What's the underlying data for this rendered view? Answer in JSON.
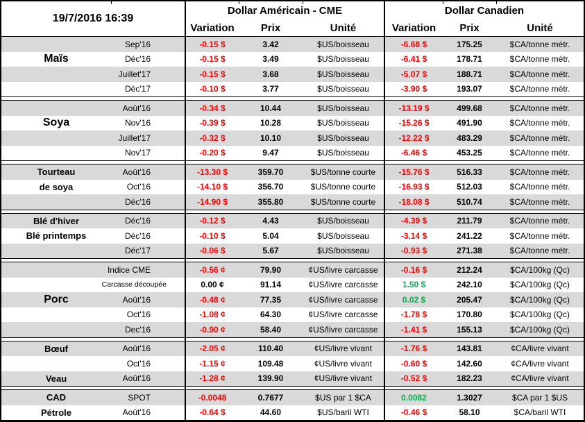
{
  "titlebar": {
    "timestamp": "19/7/2016 16:39"
  },
  "header": {
    "us_title": "Dollar Américain - CME",
    "ca_title": "Dollar Canadien",
    "variation": "Variation",
    "prix": "Prix",
    "unite": "Unité"
  },
  "colors": {
    "negative": "#FF0000",
    "positive": "#00B050",
    "neutral": "#000000",
    "row_shade": "#D9D9D9"
  },
  "sections": [
    {
      "name": "Maïs",
      "rows": [
        {
          "label": "",
          "month": "Sep'16",
          "us": {
            "variation": "-0.15 $",
            "trend": "negative",
            "prix": "3.42",
            "unite": "$US/boisseau"
          },
          "ca": {
            "variation": "-6.68 $",
            "trend": "negative",
            "prix": "175.25",
            "unite": "$CA/tonne métr."
          }
        },
        {
          "label": "Maïs",
          "label_large": true,
          "month": "Déc'16",
          "us": {
            "variation": "-0.15 $",
            "trend": "negative",
            "prix": "3.49",
            "unite": "$US/boisseau"
          },
          "ca": {
            "variation": "-6.41 $",
            "trend": "negative",
            "prix": "178.71",
            "unite": "$CA/tonne métr."
          }
        },
        {
          "label": "",
          "month": "Juillet'17",
          "us": {
            "variation": "-0.15 $",
            "trend": "negative",
            "prix": "3.68",
            "unite": "$US/boisseau"
          },
          "ca": {
            "variation": "-5.07 $",
            "trend": "negative",
            "prix": "188.71",
            "unite": "$CA/tonne métr."
          }
        },
        {
          "label": "",
          "month": "Déc'17",
          "us": {
            "variation": "-0.10 $",
            "trend": "negative",
            "prix": "3.77",
            "unite": "$US/boisseau"
          },
          "ca": {
            "variation": "-3.90 $",
            "trend": "negative",
            "prix": "193.07",
            "unite": "$CA/tonne métr."
          }
        }
      ]
    },
    {
      "name": "Soya",
      "rows": [
        {
          "label": "",
          "month": "Août'16",
          "us": {
            "variation": "-0.34 $",
            "trend": "negative",
            "prix": "10.44",
            "unite": "$US/boisseau"
          },
          "ca": {
            "variation": "-13.19 $",
            "trend": "negative",
            "prix": "499.68",
            "unite": "$CA/tonne métr."
          }
        },
        {
          "label": "Soya",
          "label_large": true,
          "month": "Nov'16",
          "us": {
            "variation": "-0.39 $",
            "trend": "negative",
            "prix": "10.28",
            "unite": "$US/boisseau"
          },
          "ca": {
            "variation": "-15.26 $",
            "trend": "negative",
            "prix": "491.90",
            "unite": "$CA/tonne métr."
          }
        },
        {
          "label": "",
          "month": "Juillet'17",
          "us": {
            "variation": "-0.32 $",
            "trend": "negative",
            "prix": "10.10",
            "unite": "$US/boisseau"
          },
          "ca": {
            "variation": "-12.22 $",
            "trend": "negative",
            "prix": "483.29",
            "unite": "$CA/tonne métr."
          }
        },
        {
          "label": "",
          "month": "Nov'17",
          "us": {
            "variation": "-0.20 $",
            "trend": "negative",
            "prix": "9.47",
            "unite": "$US/boisseau"
          },
          "ca": {
            "variation": "-6.46 $",
            "trend": "negative",
            "prix": "453.25",
            "unite": "$CA/tonne métr."
          }
        }
      ]
    },
    {
      "name": "Tourteau de soya",
      "rows": [
        {
          "label": "Tourteau",
          "month": "Août'16",
          "us": {
            "variation": "-13.30 $",
            "trend": "negative",
            "prix": "359.70",
            "unite": "$US/tonne courte"
          },
          "ca": {
            "variation": "-15.76 $",
            "trend": "negative",
            "prix": "516.33",
            "unite": "$CA/tonne métr."
          }
        },
        {
          "label": "de soya",
          "month": "Oct'16",
          "us": {
            "variation": "-14.10 $",
            "trend": "negative",
            "prix": "356.70",
            "unite": "$US/tonne courte"
          },
          "ca": {
            "variation": "-16.93 $",
            "trend": "negative",
            "prix": "512.03",
            "unite": "$CA/tonne métr."
          }
        },
        {
          "label": "",
          "month": "Déc'16",
          "us": {
            "variation": "-14.90 $",
            "trend": "negative",
            "prix": "355.80",
            "unite": "$US/tonne courte"
          },
          "ca": {
            "variation": "-18.08 $",
            "trend": "negative",
            "prix": "510.74",
            "unite": "$CA/tonne métr."
          }
        }
      ]
    },
    {
      "name": "Blé",
      "rows": [
        {
          "label": "Blé d'hiver",
          "month": "Déc'16",
          "us": {
            "variation": "-0.12 $",
            "trend": "negative",
            "prix": "4.43",
            "unite": "$US/boisseau"
          },
          "ca": {
            "variation": "-4.39 $",
            "trend": "negative",
            "prix": "211.79",
            "unite": "$CA/tonne métr."
          }
        },
        {
          "label": "Blé printemps",
          "month": "Déc'16",
          "us": {
            "variation": "-0.10 $",
            "trend": "negative",
            "prix": "5.04",
            "unite": "$US/boisseau"
          },
          "ca": {
            "variation": "-3.14 $",
            "trend": "negative",
            "prix": "241.22",
            "unite": "$CA/tonne métr."
          }
        },
        {
          "label": "",
          "month": "Déc'17",
          "us": {
            "variation": "-0.06 $",
            "trend": "negative",
            "prix": "5.67",
            "unite": "$US/boisseau"
          },
          "ca": {
            "variation": "-0.93 $",
            "trend": "negative",
            "prix": "271.38",
            "unite": "$CA/tonne métr."
          }
        }
      ]
    },
    {
      "name": "Porc",
      "rows": [
        {
          "label": "",
          "month": "Indice CME",
          "us": {
            "variation": "-0.56 ¢",
            "trend": "negative",
            "prix": "79.90",
            "unite": "¢US/livre carcasse"
          },
          "ca": {
            "variation": "-0.16 $",
            "trend": "negative",
            "prix": "212.24",
            "unite": "$CA/100kg (Qc)"
          }
        },
        {
          "label": "",
          "month": "Carcasse découpée",
          "month_small": true,
          "us": {
            "variation": "0.00 ¢",
            "trend": "neutral",
            "prix": "91.14",
            "unite": "¢US/livre carcasse"
          },
          "ca": {
            "variation": "1.50 $",
            "trend": "positive",
            "prix": "242.10",
            "unite": "$CA/100kg (Qc)"
          }
        },
        {
          "label": "Porc",
          "label_large": true,
          "month": "Août'16",
          "us": {
            "variation": "-0.48 ¢",
            "trend": "negative",
            "prix": "77.35",
            "unite": "¢US/livre carcasse"
          },
          "ca": {
            "variation": "0.02 $",
            "trend": "positive",
            "prix": "205.47",
            "unite": "$CA/100kg (Qc)"
          }
        },
        {
          "label": "",
          "month": "Oct'16",
          "us": {
            "variation": "-1.08 ¢",
            "trend": "negative",
            "prix": "64.30",
            "unite": "¢US/livre carcasse"
          },
          "ca": {
            "variation": "-1.78 $",
            "trend": "negative",
            "prix": "170.80",
            "unite": "$CA/100kg (Qc)"
          }
        },
        {
          "label": "",
          "month": "Dec'16",
          "us": {
            "variation": "-0.90 ¢",
            "trend": "negative",
            "prix": "58.40",
            "unite": "¢US/livre carcasse"
          },
          "ca": {
            "variation": "-1.41 $",
            "trend": "negative",
            "prix": "155.13",
            "unite": "$CA/100kg (Qc)"
          }
        }
      ]
    },
    {
      "name": "Bœuf / Veau",
      "rows": [
        {
          "label": "Bœuf",
          "month": "Août'16",
          "us": {
            "variation": "-2.05 ¢",
            "trend": "negative",
            "prix": "110.40",
            "unite": "¢US/livre vivant"
          },
          "ca": {
            "variation": "-1.76 $",
            "trend": "negative",
            "prix": "143.81",
            "unite": "¢CA/livre vivant"
          }
        },
        {
          "label": "",
          "month": "Oct'16",
          "us": {
            "variation": "-1.15 ¢",
            "trend": "negative",
            "prix": "109.48",
            "unite": "¢US/livre vivant"
          },
          "ca": {
            "variation": "-0.60 $",
            "trend": "negative",
            "prix": "142.60",
            "unite": "¢CA/livre vivant"
          }
        },
        {
          "label": "Veau",
          "month": "Août'16",
          "us": {
            "variation": "-1.28 ¢",
            "trend": "negative",
            "prix": "139.90",
            "unite": "¢US/livre vivant"
          },
          "ca": {
            "variation": "-0.52 $",
            "trend": "negative",
            "prix": "182.23",
            "unite": "¢CA/livre vivant"
          }
        }
      ]
    },
    {
      "name": "CAD / Pétrole",
      "rows": [
        {
          "label": "CAD",
          "month": "SPOT",
          "us": {
            "variation": "-0.0048",
            "trend": "negative",
            "prix": "0.7677",
            "unite": "$US par 1 $CA"
          },
          "ca": {
            "variation": "0.0082",
            "trend": "positive",
            "prix": "1.3027",
            "unite": "$CA par 1 $US"
          }
        },
        {
          "label": "Pétrole",
          "month": "Août'16",
          "us": {
            "variation": "-0.64 $",
            "trend": "negative",
            "prix": "44.60",
            "unite": "$US/baril WTI"
          },
          "ca": {
            "variation": "-0.46 $",
            "trend": "negative",
            "prix": "58.10",
            "unite": "$CA/baril WTI"
          }
        }
      ]
    }
  ]
}
